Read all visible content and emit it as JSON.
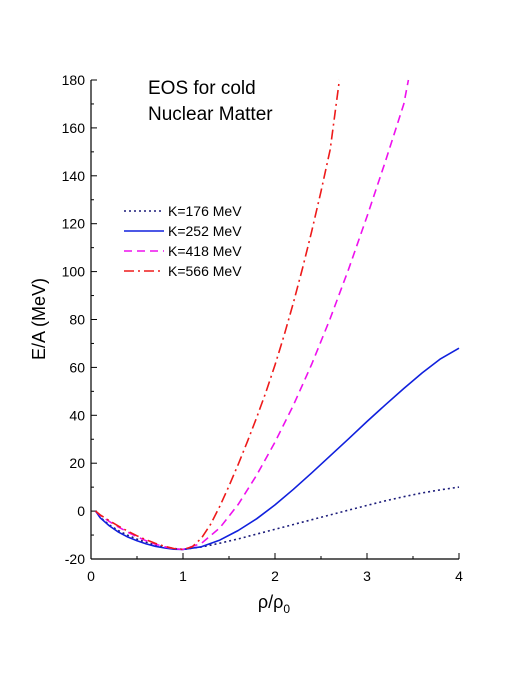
{
  "chart_data": {
    "type": "line",
    "title_lines": [
      "EOS for cold",
      "Nuclear Matter"
    ],
    "xlabel": "ρ/ρ",
    "xlabel_subscript": "0",
    "ylabel": "E/A (MeV)",
    "xlim": [
      0,
      4
    ],
    "ylim": [
      -20,
      180
    ],
    "xticks": [
      0,
      1,
      2,
      3,
      4
    ],
    "yticks": [
      -20,
      0,
      20,
      40,
      60,
      80,
      100,
      120,
      140,
      160,
      180
    ],
    "grid": false,
    "legend_position": "upper-left",
    "series": [
      {
        "name": "K=176 MeV",
        "color": "#1c1c7a",
        "dash": "dotted",
        "x": [
          0.05,
          0.1,
          0.2,
          0.3,
          0.4,
          0.5,
          0.6,
          0.7,
          0.8,
          0.9,
          1.0,
          1.2,
          1.4,
          1.6,
          1.8,
          2.0,
          2.2,
          2.4,
          2.6,
          2.8,
          3.0,
          3.2,
          3.4,
          3.6,
          3.8,
          4.0
        ],
        "values": [
          0,
          -2.6,
          -5.8,
          -8.2,
          -10.1,
          -11.7,
          -13.0,
          -14.2,
          -15.0,
          -15.6,
          -16.0,
          -15.0,
          -13.4,
          -11.6,
          -9.6,
          -7.6,
          -5.6,
          -3.6,
          -1.6,
          0.4,
          2.4,
          4.3,
          6.0,
          7.6,
          8.9,
          10.0
        ]
      },
      {
        "name": "K=252 MeV",
        "color": "#1020dd",
        "dash": "solid",
        "x": [
          0.05,
          0.1,
          0.2,
          0.3,
          0.4,
          0.5,
          0.6,
          0.7,
          0.8,
          0.9,
          1.0,
          1.2,
          1.4,
          1.6,
          1.8,
          2.0,
          2.2,
          2.4,
          2.6,
          2.8,
          3.0,
          3.2,
          3.4,
          3.6,
          3.8,
          4.0
        ],
        "values": [
          0,
          -2.8,
          -6.2,
          -8.8,
          -10.8,
          -12.4,
          -13.7,
          -14.7,
          -15.4,
          -15.9,
          -16.0,
          -14.9,
          -12.1,
          -8.1,
          -3.2,
          2.6,
          9.1,
          16.0,
          23.1,
          30.2,
          37.4,
          44.4,
          51.2,
          57.7,
          63.6,
          68.0
        ]
      },
      {
        "name": "K=418 MeV",
        "color": "#ee10ee",
        "dash": "dashed",
        "x": [
          0.05,
          0.1,
          0.2,
          0.3,
          0.4,
          0.5,
          0.6,
          0.7,
          0.8,
          0.9,
          1.0,
          1.2,
          1.4,
          1.6,
          1.8,
          2.0,
          2.2,
          2.4,
          2.6,
          2.8,
          3.0,
          3.2,
          3.4,
          3.45
        ],
        "values": [
          0,
          -1.8,
          -4.4,
          -6.7,
          -8.8,
          -10.7,
          -12.4,
          -13.8,
          -14.9,
          -15.7,
          -16.0,
          -13.5,
          -7.0,
          2.8,
          15.0,
          28.8,
          44.2,
          61.4,
          80.4,
          101.0,
          123.0,
          146.0,
          170.0,
          180.0
        ]
      },
      {
        "name": "K=566 MeV",
        "color": "#ee1a1a",
        "dash": "dashdot",
        "x": [
          0.05,
          0.1,
          0.2,
          0.3,
          0.4,
          0.5,
          0.6,
          0.7,
          0.8,
          0.9,
          1.0,
          1.1,
          1.2,
          1.3,
          1.4,
          1.5,
          1.6,
          1.7,
          1.8,
          1.9,
          2.0,
          2.1,
          2.2,
          2.3,
          2.4,
          2.5,
          2.6,
          2.7
        ],
        "values": [
          0,
          -1.6,
          -4.0,
          -6.3,
          -8.4,
          -10.3,
          -12.0,
          -13.5,
          -14.7,
          -15.6,
          -16.0,
          -14.9,
          -11.3,
          -5.5,
          2.0,
          10.5,
          19.5,
          29.0,
          39.0,
          49.5,
          61.0,
          73.5,
          87.0,
          101.5,
          117.0,
          133.5,
          151.0,
          180.0
        ]
      }
    ]
  }
}
